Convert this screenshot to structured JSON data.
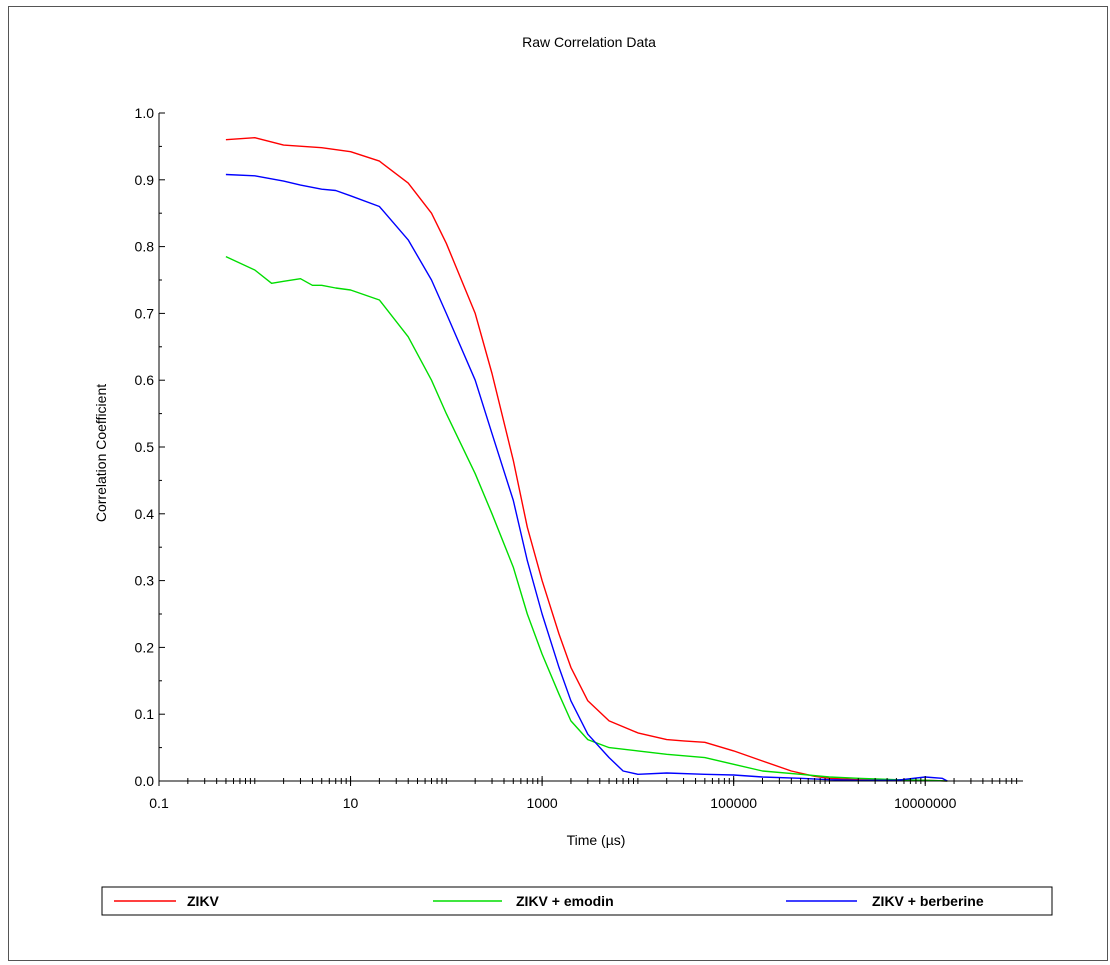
{
  "chart_data": {
    "type": "line",
    "title": "Raw Correlation Data",
    "xlabel": "Time (µs)",
    "ylabel": "Correlation Coefficient",
    "x_scale": "log",
    "xlim": [
      0.1,
      100000000
    ],
    "ylim": [
      0,
      1
    ],
    "x_ticks": [
      "0.1",
      "10",
      "1000",
      "100000",
      "10000000"
    ],
    "x_tick_values": [
      0.1,
      10,
      1000,
      100000,
      10000000
    ],
    "y_ticks": [
      "0.0",
      "0.1",
      "0.2",
      "0.3",
      "0.4",
      "0.5",
      "0.6",
      "0.7",
      "0.8",
      "0.9",
      "1.0"
    ],
    "y_tick_values": [
      0,
      0.1,
      0.2,
      0.3,
      0.4,
      0.5,
      0.6,
      0.7,
      0.8,
      0.9,
      1.0
    ],
    "grid": false,
    "legend_position": "bottom",
    "series": [
      {
        "name": "ZIKV",
        "color": "#ff0000",
        "x": [
          0.5,
          1,
          2,
          5,
          10,
          20,
          40,
          70,
          100,
          200,
          300,
          500,
          700,
          1000,
          1500,
          2000,
          3000,
          5000,
          10000,
          20000,
          30000,
          50000,
          100000,
          200000,
          400000,
          700000,
          1000000,
          2000000,
          5000000,
          10000000,
          17000000
        ],
        "y": [
          0.96,
          0.963,
          0.952,
          0.948,
          0.942,
          0.928,
          0.895,
          0.85,
          0.805,
          0.7,
          0.61,
          0.48,
          0.38,
          0.3,
          0.22,
          0.17,
          0.12,
          0.09,
          0.072,
          0.062,
          0.06,
          0.058,
          0.045,
          0.03,
          0.015,
          0.007,
          0.004,
          0.002,
          0.001,
          0.001,
          0.0
        ]
      },
      {
        "name": "ZIKV + emodin",
        "color": "#00dd00",
        "x": [
          0.5,
          1,
          1.5,
          2,
          3,
          4,
          5,
          7,
          10,
          20,
          40,
          70,
          100,
          200,
          300,
          500,
          700,
          1000,
          1500,
          2000,
          3000,
          5000,
          10000,
          20000,
          50000,
          100000,
          200000,
          500000,
          1000000,
          2000000,
          5000000,
          10000000,
          17000000
        ],
        "y": [
          0.785,
          0.765,
          0.745,
          0.748,
          0.752,
          0.742,
          0.742,
          0.738,
          0.735,
          0.72,
          0.665,
          0.6,
          0.55,
          0.46,
          0.4,
          0.32,
          0.25,
          0.19,
          0.13,
          0.09,
          0.062,
          0.05,
          0.045,
          0.04,
          0.035,
          0.025,
          0.015,
          0.01,
          0.006,
          0.004,
          0.002,
          0.001,
          0.0
        ]
      },
      {
        "name": "ZIKV + berberine",
        "color": "#0000ff",
        "x": [
          0.5,
          1,
          2,
          3,
          5,
          7,
          10,
          20,
          40,
          70,
          100,
          200,
          300,
          500,
          700,
          1000,
          1500,
          2000,
          3000,
          5000,
          7000,
          10000,
          20000,
          50000,
          100000,
          200000,
          500000,
          1000000,
          2000000,
          5000000,
          10000000,
          15000000,
          17000000
        ],
        "y": [
          0.908,
          0.906,
          0.898,
          0.892,
          0.886,
          0.884,
          0.876,
          0.86,
          0.81,
          0.75,
          0.7,
          0.6,
          0.52,
          0.42,
          0.33,
          0.25,
          0.17,
          0.12,
          0.07,
          0.035,
          0.015,
          0.01,
          0.012,
          0.01,
          0.009,
          0.006,
          0.004,
          0.002,
          0.001,
          0.001,
          0.006,
          0.004,
          0.0
        ]
      }
    ]
  }
}
